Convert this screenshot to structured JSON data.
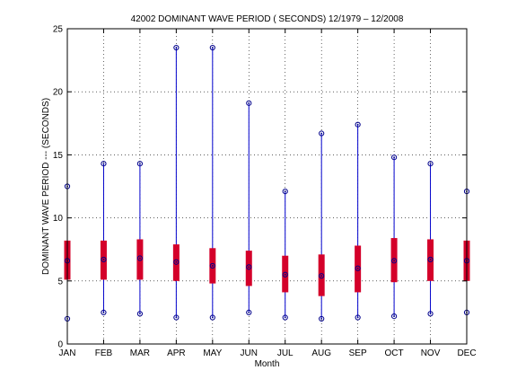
{
  "chart_data": {
    "type": "box",
    "title": "42002  DOMINANT WAVE PERIOD ( SECONDS) 12/1979 – 12/2008",
    "xlabel": "Month",
    "ylabel": "DOMINANT WAVE PERIOD  ---  (SECONDS)",
    "ylim": [
      0,
      25
    ],
    "yticks": [
      "0",
      "5",
      "10",
      "15",
      "20",
      "25"
    ],
    "categories": [
      "JAN",
      "FEB",
      "MAR",
      "APR",
      "MAY",
      "JUN",
      "JUL",
      "AUG",
      "SEP",
      "OCT",
      "NOV",
      "DEC"
    ],
    "grid": true,
    "series": [
      {
        "min": [
          2.0,
          2.5,
          2.4,
          2.1,
          2.1,
          2.5,
          2.1,
          2.0,
          2.1,
          2.2,
          2.4,
          2.5
        ],
        "q1": [
          5.1,
          5.1,
          5.1,
          5.0,
          4.8,
          4.6,
          4.1,
          3.8,
          4.1,
          4.9,
          5.0,
          5.0
        ],
        "median": [
          6.6,
          6.7,
          6.8,
          6.5,
          6.2,
          6.1,
          5.5,
          5.4,
          6.0,
          6.6,
          6.7,
          6.6
        ],
        "q3": [
          8.2,
          8.2,
          8.3,
          7.9,
          7.6,
          7.4,
          7.0,
          7.1,
          7.8,
          8.4,
          8.3,
          8.2
        ],
        "max": [
          12.5,
          14.3,
          14.3,
          23.5,
          23.5,
          19.1,
          12.1,
          16.7,
          17.4,
          14.8,
          14.3,
          12.1
        ]
      }
    ],
    "colors": {
      "whisker": "#0000cc",
      "box": "#d4002a",
      "marker": "#00008b",
      "grid": "#000000",
      "axis": "#000000"
    }
  }
}
